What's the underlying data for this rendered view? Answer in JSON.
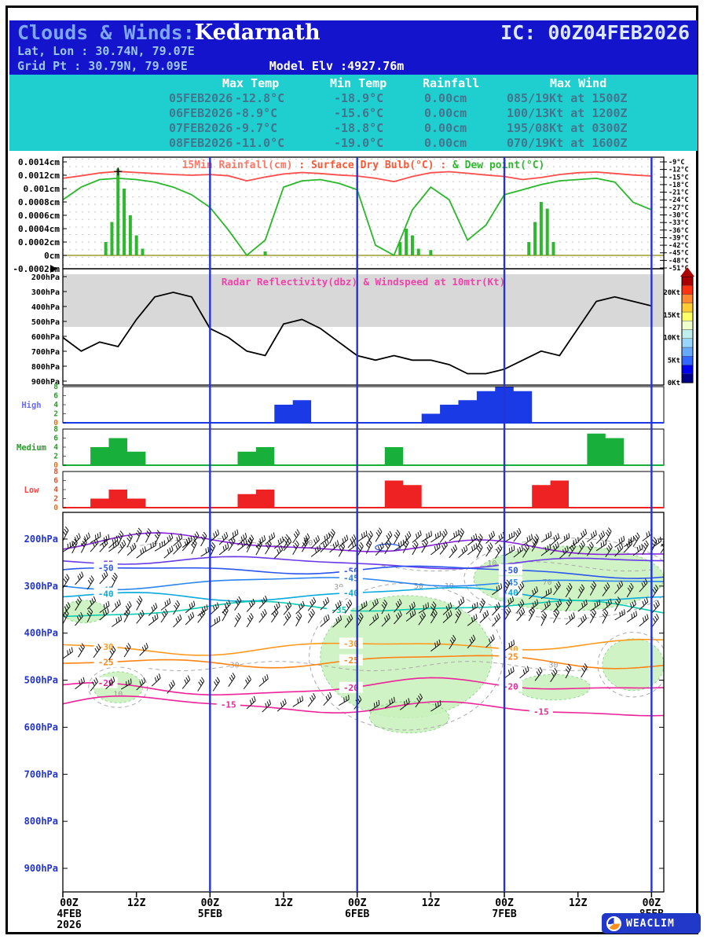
{
  "header": {
    "bg": "#1414cc",
    "title_prefix": "Clouds & Winds:",
    "title_location": "Kedarnath",
    "ic_label": "IC: 00Z04FEB2026",
    "lat_lon": "Lat, Lon : 30.74N, 79.07E",
    "grid_pt": "Grid Pt : 30.79N, 79.09E",
    "model_elv": "Model Elv :4927.76m"
  },
  "summary_table": {
    "bg": "#1fcfcf",
    "header_color": "#ffffff",
    "text_color": "#44758f",
    "columns": [
      "Max Temp",
      "Min Temp",
      "Rainfall",
      "Max Wind"
    ],
    "rows": [
      {
        "date": "05FEB2026",
        "max_temp": "-12.8°C",
        "min_temp": "-18.9°C",
        "rainfall": "0.00cm",
        "max_wind": "085/19Kt at 1500Z"
      },
      {
        "date": "06FEB2026",
        "max_temp": "-8.9°C",
        "min_temp": "-15.6°C",
        "rainfall": "0.00cm",
        "max_wind": "100/13Kt at 1200Z"
      },
      {
        "date": "07FEB2026",
        "max_temp": "-9.7°C",
        "min_temp": "-18.8°C",
        "rainfall": "0.00cm",
        "max_wind": "195/08Kt at 0300Z"
      },
      {
        "date": "08FEB2026",
        "max_temp": "-11.0°C",
        "min_temp": "-19.0°C",
        "rainfall": "0.00cm",
        "max_wind": "070/19Kt at 1600Z"
      }
    ]
  },
  "x_axis": {
    "hours_total": 98,
    "day_line_hours": [
      24,
      48,
      72,
      96
    ],
    "day_line_color": "#2333d6",
    "ticks": [
      {
        "t": 0,
        "label": "00Z",
        "date": "4FEB",
        "year": "2026"
      },
      {
        "t": 12,
        "label": "12Z"
      },
      {
        "t": 24,
        "label": "00Z",
        "date": "5FEB"
      },
      {
        "t": 36,
        "label": "12Z"
      },
      {
        "t": 48,
        "label": "00Z",
        "date": "6FEB"
      },
      {
        "t": 60,
        "label": "12Z"
      },
      {
        "t": 72,
        "label": "00Z",
        "date": "7FEB"
      },
      {
        "t": 84,
        "label": "12Z"
      },
      {
        "t": 96,
        "label": "00Z",
        "date": "8FEB"
      }
    ]
  },
  "chart_data": [
    {
      "id": "rain_temp",
      "type": "line+bar",
      "title_parts": [
        {
          "text": "15Min Rainfall(cm)",
          "color": "#ff7766"
        },
        {
          "text": " : Surface Dry Bulb(°C) : ",
          "color": "#ff5533"
        },
        {
          "text": "& Dew point(°C)",
          "color": "#2db82d"
        }
      ],
      "left_axis": {
        "min": -0.0002,
        "max": 0.0014,
        "tick_labels": [
          "0.0014cm",
          "0.0012cm",
          "0.001cm",
          "0.0008cm",
          "0.0006cm",
          "0.0004cm",
          "0.0002cm",
          "0cm",
          "-0.0002cm"
        ]
      },
      "right_axis": {
        "unit": "°C",
        "max": -9,
        "min": -51,
        "step": 3
      },
      "zero_line_color": "#8a8a00",
      "x_step_hours": 3,
      "series": [
        {
          "name": "dry-bulb-temp",
          "color": "#ff4d4d",
          "unit": "°C",
          "values": [
            -15.5,
            -14.5,
            -13.4,
            -12.8,
            -13.2,
            -13.6,
            -14.0,
            -14.3,
            -14.0,
            -14.5,
            -16.5,
            -15.0,
            -13.8,
            -13.2,
            -13.6,
            -14.2,
            -14.6,
            -15.5,
            -16.8,
            -14.8,
            -13.3,
            -12.9,
            -13.5,
            -14.2,
            -14.8,
            -16.0,
            -15.2,
            -14.0,
            -13.3,
            -13.0,
            -13.6,
            -14.2,
            -14.6
          ]
        },
        {
          "name": "dew-point",
          "color": "#28b828",
          "unit": "°C",
          "values": [
            -24,
            -19,
            -16,
            -15.5,
            -16,
            -17,
            -19,
            -22,
            -27,
            -36,
            -46,
            -40,
            -19,
            -16.5,
            -16,
            -17.5,
            -20,
            -42,
            -46,
            -28,
            -19,
            -24,
            -40,
            -34,
            -22,
            -20,
            -18,
            -16.5,
            -16,
            -15.5,
            -17,
            -25,
            -28
          ]
        }
      ],
      "rainfall_bars": {
        "color": "#2db82d",
        "unit": "cm",
        "x_hours": [
          7,
          8,
          9,
          10,
          11,
          12,
          13,
          33,
          55,
          56,
          57,
          58,
          60,
          76,
          77,
          78,
          79,
          80
        ],
        "values": [
          0.0002,
          0.0005,
          0.0013,
          0.001,
          0.0006,
          0.0003,
          0.0001,
          6e-05,
          0.0002,
          0.0004,
          0.0003,
          0.0001,
          8e-05,
          0.0002,
          0.0005,
          0.0008,
          0.0007,
          0.0002
        ]
      }
    },
    {
      "id": "radar_wind",
      "type": "line",
      "title": "Radar Reflectivity(dbz) & Windspeed at 10mtr(Kt)",
      "title_color": "#ee44aa",
      "left_axis_ticks": [
        "200hPa",
        "300hPa",
        "400hPa",
        "500hPa",
        "600hPa",
        "700hPa",
        "800hPa",
        "900hPa"
      ],
      "no_data_band_color": "#d8d8d8",
      "x_step_hours": 3,
      "windspeed_kt": {
        "color": "#000000",
        "values": [
          10,
          7,
          9,
          8,
          14,
          19,
          20,
          19,
          12,
          10,
          7,
          6,
          13,
          14,
          12,
          9,
          6,
          5,
          6,
          5,
          5,
          4,
          2,
          2,
          3,
          5,
          7,
          6,
          12,
          18,
          19,
          18,
          17
        ]
      },
      "colorbar": {
        "tick_labels": [
          "20Kt",
          "15Kt",
          "10Kt",
          "5Kt",
          "0Kt"
        ],
        "min_kt": 0,
        "max_kt": 22,
        "colors_bottom_to_top": [
          "#000088",
          "#0000ee",
          "#3366ff",
          "#66aaff",
          "#99d6ff",
          "#bfeeee",
          "#eeffcc",
          "#ffff66",
          "#ffcc33",
          "#ff8833",
          "#ff3311",
          "#aa0000"
        ]
      }
    },
    {
      "id": "cloud_cover",
      "type": "area",
      "unit": "octa",
      "y_ticks": [
        0,
        2,
        4,
        6,
        8
      ],
      "x_step_hours": 3,
      "panels": [
        {
          "name": "High",
          "label_color": "#6b6bff",
          "tick_color": "#2a9a2a",
          "fill": "#1a3ae6",
          "values": [
            0,
            0,
            0,
            0,
            0,
            0,
            0,
            0,
            0,
            0,
            0,
            0,
            4,
            5,
            0,
            0,
            0,
            0,
            0,
            0,
            2,
            4,
            5,
            7,
            8,
            7,
            0,
            0,
            0,
            0,
            0,
            0,
            0
          ]
        },
        {
          "name": "Medium",
          "label_color": "#2a9a2a",
          "tick_color": "#2a9a2a",
          "fill": "#18b03a",
          "values": [
            0,
            0,
            4,
            6,
            3,
            0,
            0,
            0,
            0,
            0,
            3,
            4,
            0,
            0,
            0,
            0,
            0,
            0,
            4,
            0,
            0,
            0,
            0,
            0,
            0,
            0,
            0,
            0,
            0,
            7,
            6,
            0,
            0
          ]
        },
        {
          "name": "Low",
          "label_color": "#ff4444",
          "tick_color": "#e05030",
          "fill": "#ee2222",
          "values": [
            0,
            0,
            2,
            4,
            2,
            0,
            0,
            0,
            0,
            0,
            3,
            4,
            0,
            0,
            0,
            0,
            0,
            0,
            6,
            5,
            0,
            0,
            0,
            0,
            0,
            0,
            5,
            6,
            0,
            0,
            0,
            0,
            0
          ]
        }
      ]
    },
    {
      "id": "upper_air",
      "type": "contour",
      "pressure_ticks": [
        "200hPa",
        "300hPa",
        "400hPa",
        "500hPa",
        "600hPa",
        "700hPa",
        "800hPa",
        "900hPa"
      ],
      "pressure_label_color": "#2233cc",
      "temp_contours": [
        {
          "label": "",
          "color": "#8822dd",
          "pressure": 215,
          "amp": 9,
          "label_hours": []
        },
        {
          "label": "-55",
          "color": "#6a3ae6",
          "pressure": 248,
          "amp": 5,
          "label_hours": [
            7
          ]
        },
        {
          "label": "-50",
          "color": "#2a55ee",
          "pressure": 268,
          "amp": 5,
          "label_hours": [
            7,
            47,
            73
          ]
        },
        {
          "label": "-45",
          "color": "#2a85ee",
          "pressure": 293,
          "amp": 5,
          "label_hours": [
            7,
            47,
            73
          ]
        },
        {
          "label": "-40",
          "color": "#08aadd",
          "pressure": 320,
          "amp": 6,
          "label_hours": [
            7,
            47,
            73
          ]
        },
        {
          "label": "-35",
          "color": "#0accb0",
          "pressure": 348,
          "amp": 7,
          "label_hours": [
            45
          ]
        },
        {
          "label": "-30",
          "color": "#ff9a1e",
          "pressure": 428,
          "amp": 6,
          "label_hours": [
            7,
            47,
            73
          ]
        },
        {
          "label": "-25",
          "color": "#ff8414",
          "pressure": 462,
          "amp": 6,
          "label_hours": [
            7,
            47,
            73
          ]
        },
        {
          "label": "-20",
          "color": "#ee2299",
          "pressure": 515,
          "amp": 7,
          "label_hours": [
            7,
            47,
            73
          ]
        },
        {
          "label": "-15",
          "color": "#ee2299",
          "pressure": 557,
          "amp": 8,
          "label_hours": [
            27,
            78
          ]
        }
      ],
      "rh_contour_color": "#aaaaaa",
      "rh_contour_labels": [
        {
          "label": "10",
          "t": 40,
          "pressure": 208
        },
        {
          "label": "10",
          "t": 70,
          "pressure": 252
        },
        {
          "label": "30",
          "t": 45,
          "pressure": 302
        },
        {
          "label": "50",
          "t": 58,
          "pressure": 300
        },
        {
          "label": "70",
          "t": 79,
          "pressure": 292
        },
        {
          "label": "30",
          "t": 28,
          "pressure": 468
        },
        {
          "label": "30",
          "t": 80,
          "pressure": 468
        },
        {
          "label": "10",
          "t": 9,
          "pressure": 530
        },
        {
          "label": "10",
          "t": 63,
          "pressure": 300
        }
      ],
      "humidity_shade": {
        "fill": "#c8f2bc",
        "edge": "#7ed07e",
        "regions": [
          {
            "t0": 42,
            "t1": 70,
            "p0": 320,
            "p1": 580
          },
          {
            "t0": 50,
            "t1": 63,
            "p0": 545,
            "p1": 612
          },
          {
            "t0": 5,
            "t1": 13,
            "p0": 482,
            "p1": 548
          },
          {
            "t0": 0,
            "t1": 7,
            "p0": 330,
            "p1": 378
          },
          {
            "t0": 67,
            "t1": 98,
            "p0": 215,
            "p1": 352
          },
          {
            "t0": 88,
            "t1": 98,
            "p0": 412,
            "p1": 522
          },
          {
            "t0": 74,
            "t1": 86,
            "p0": 488,
            "p1": 542
          }
        ]
      },
      "wind_barb_rows": [
        {
          "pressure": 212,
          "from": 0,
          "to": 98,
          "step": 1.5
        },
        {
          "pressure": 233,
          "from": 0,
          "to": 98,
          "step": 1.5
        },
        {
          "pressure": 355,
          "from": 0,
          "to": 98,
          "step": 2
        },
        {
          "pressure": 380,
          "from": 0,
          "to": 98,
          "step": 2
        },
        {
          "pressure": 320,
          "from": 70,
          "to": 98,
          "step": 2
        },
        {
          "pressure": 300,
          "from": 0,
          "to": 9,
          "step": 2
        },
        {
          "pressure": 455,
          "from": 0,
          "to": 14,
          "step": 2.5
        },
        {
          "pressure": 520,
          "from": 2,
          "to": 34,
          "step": 2.5
        },
        {
          "pressure": 560,
          "from": 30,
          "to": 62,
          "step": 2.5
        },
        {
          "pressure": 500,
          "from": 72,
          "to": 86,
          "step": 2.5
        },
        {
          "pressure": 432,
          "from": 60,
          "to": 74,
          "step": 3
        }
      ]
    }
  ],
  "logo": {
    "text": "WEACLIM",
    "bg": "#2238c8"
  }
}
